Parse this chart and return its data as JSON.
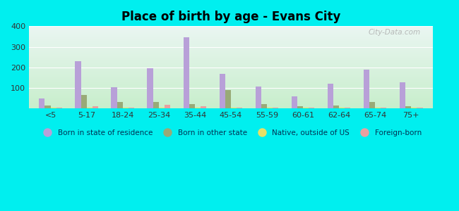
{
  "title": "Place of birth by age - Evans City",
  "background_color": "#00EFEF",
  "categories": [
    "<5",
    "5-17",
    "18-24",
    "25-34",
    "35-44",
    "45-54",
    "55-59",
    "60-61",
    "62-64",
    "65-74",
    "75+"
  ],
  "series": {
    "Born in state of residence": {
      "color": "#b8a0d8",
      "values": [
        50,
        230,
        105,
        195,
        345,
        168,
        106,
        58,
        122,
        190,
        126
      ]
    },
    "Born in other state": {
      "color": "#99aa77",
      "values": [
        15,
        65,
        30,
        30,
        22,
        90,
        22,
        12,
        14,
        30,
        10
      ]
    },
    "Native, outside of US": {
      "color": "#e8e066",
      "values": [
        3,
        3,
        4,
        3,
        5,
        3,
        3,
        3,
        3,
        3,
        3
      ]
    },
    "Foreign-born": {
      "color": "#e8a0a0",
      "values": [
        3,
        12,
        4,
        18,
        10,
        4,
        4,
        4,
        4,
        4,
        5
      ]
    }
  },
  "ylim": [
    0,
    400
  ],
  "yticks": [
    100,
    200,
    300,
    400
  ],
  "bar_width": 0.16,
  "legend_labels": [
    "Born in state of residence",
    "Born in other state",
    "Native, outside of US",
    "Foreign-born"
  ],
  "watermark": "City-Data.com",
  "grad_top": "#eaf6f2",
  "grad_bottom": "#c8eecc"
}
